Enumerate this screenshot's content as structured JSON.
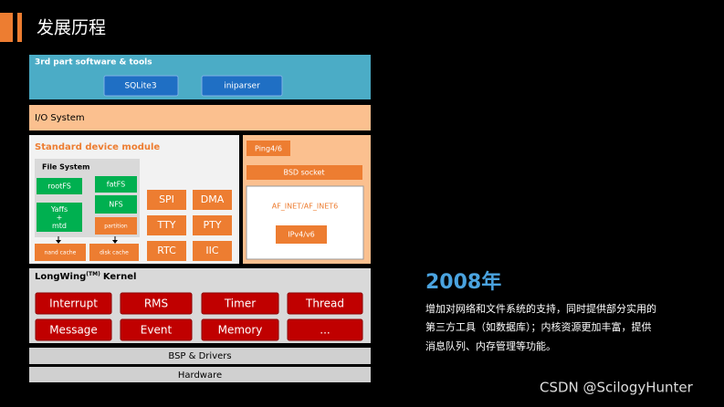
{
  "header": {
    "title": "发展历程"
  },
  "diagram": {
    "third_party": {
      "title": "3rd part software & tools",
      "items": [
        "SQLite3",
        "iniparser"
      ]
    },
    "io_system": "I/O System",
    "device_module": {
      "title": "Standard device module",
      "file_system": {
        "title": "File System",
        "items": [
          "rootFS",
          "Yaffs\n+\nmtd",
          "fatFS",
          "NFS",
          "partition"
        ],
        "caches": [
          "nand cache",
          "disk cache"
        ]
      },
      "drivers": [
        "SPI",
        "DMA",
        "TTY",
        "PTY",
        "RTC",
        "IIC"
      ]
    },
    "network": {
      "ping": "Ping4/6",
      "socket": "BSD socket",
      "family": "AF_INET/AF_INET6",
      "ip": "IPv4/v6"
    },
    "kernel": {
      "title": "LongWing",
      "mark": "(TM)",
      "suffix": "Kernel",
      "items": [
        "Interrupt",
        "RMS",
        "Timer",
        "Thread",
        "Message",
        "Event",
        "Memory",
        "..."
      ]
    },
    "bsp": "BSP & Drivers",
    "hardware": "Hardware"
  },
  "description": {
    "year": "2008年",
    "lines": [
      "增加对网络和文件系统的支持，同时提供部分实用的",
      "第三方工具（如数据库）；内核资源更加丰富，提供",
      "消息队列、内存管理等功能。"
    ]
  },
  "watermark": "CSDN @ScilogyHunter"
}
